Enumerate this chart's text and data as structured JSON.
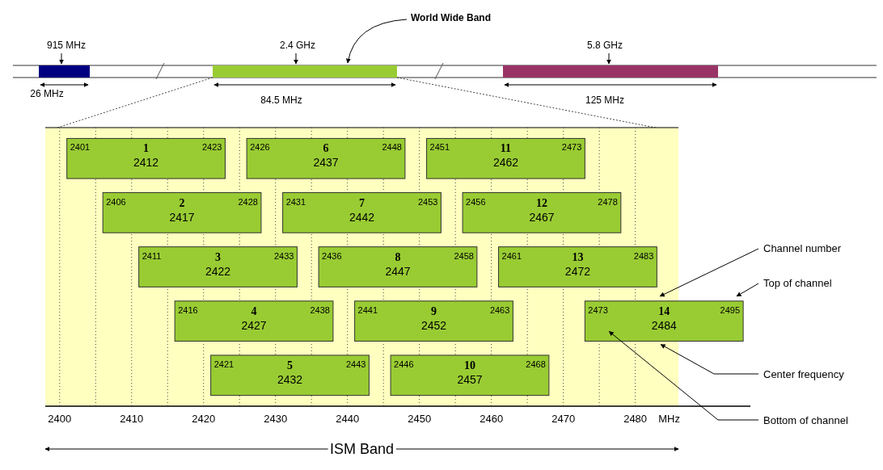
{
  "chart_data": [
    {
      "type": "other",
      "annotations": [
        "915 MHz",
        "26 MHz",
        "2.4 GHz",
        "84.5 MHz",
        "5.8 GHz",
        "125 MHz",
        "World Wide Band"
      ]
    },
    {
      "type": "bar",
      "orientation": "horizontal",
      "categories": [
        null,
        null,
        null,
        null,
        null
      ],
      "series": [
        {
          "color": "#99cc33",
          "values": [
            22,
            22,
            22,
            22,
            22
          ],
          "base": [
            2401,
            2406,
            2411,
            2416,
            2421
          ]
        },
        {
          "color": "#99cc33",
          "values": [
            22,
            22,
            22,
            22,
            22
          ],
          "base": [
            2426,
            2431,
            2436,
            2441,
            2446
          ]
        },
        {
          "color": "#99cc33",
          "values": [
            22,
            22,
            22,
            22,
            null
          ],
          "base": [
            2451,
            2456,
            2461,
            2473,
            null
          ]
        }
      ],
      "xlim": [
        2398,
        2496
      ],
      "xticks": [
        2400,
        {
          "value": 2405,
          "label": null
        },
        2410,
        {
          "value": 2415,
          "label": null
        },
        2420,
        {
          "value": 2425,
          "label": null
        },
        2430,
        {
          "value": 2435,
          "label": null
        },
        2440,
        {
          "value": 2445,
          "label": null
        },
        2450,
        {
          "value": 2455,
          "label": null
        },
        2460,
        {
          "value": 2465,
          "label": null
        },
        2470,
        {
          "value": 2475,
          "label": null
        },
        2480
      ],
      "grid": "x",
      "xlabel": "MHz",
      "bands": [
        {
          "axis": "x",
          "from": 2398,
          "to": 2486,
          "color": "#ffffc0"
        }
      ],
      "annotations": [
        "1",
        "2401",
        "2412",
        "2423",
        "2",
        "2406",
        "2417",
        "2428",
        "3",
        "2411",
        "2422",
        "2433",
        "4",
        "2416",
        "2427",
        "2438",
        "5",
        "2421",
        "2432",
        "2443",
        "6",
        "2426",
        "2437",
        "2448",
        "7",
        "2431",
        "2442",
        "2453",
        "8",
        "2436",
        "2447",
        "2458",
        "9",
        "2441",
        "2452",
        "2463",
        "10",
        "2446",
        "2457",
        "2468",
        "11",
        "2451",
        "2462",
        "2473",
        "12",
        "2456",
        "2467",
        "2478",
        "13",
        "2461",
        "2472",
        "2483",
        "14",
        "2473",
        "2484",
        "2495",
        "Channel number",
        "Top of channel",
        "Center frequency",
        "Bottom of channel",
        "ISM Band"
      ]
    }
  ]
}
